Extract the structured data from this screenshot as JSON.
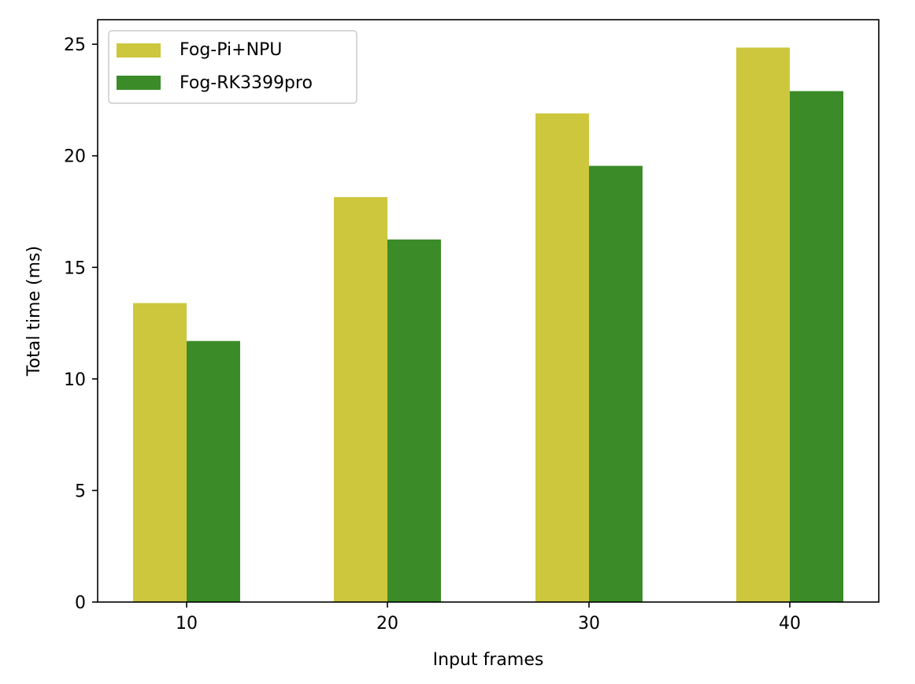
{
  "chart_data": {
    "type": "bar",
    "categories": [
      "10",
      "20",
      "30",
      "40"
    ],
    "series": [
      {
        "name": "Fog-Pi+NPU",
        "color": "#cdc73e",
        "values": [
          13.4,
          18.15,
          21.9,
          24.85
        ]
      },
      {
        "name": "Fog-RK3399pro",
        "color": "#3b8c28",
        "values": [
          11.7,
          16.25,
          19.55,
          22.9
        ]
      }
    ],
    "title": "",
    "xlabel": "Input frames",
    "ylabel": "Total time (ms)",
    "ylim": [
      0,
      26.1
    ],
    "yticks": [
      0,
      5,
      10,
      15,
      20,
      25
    ],
    "grid": false,
    "legend_position": "top-left"
  }
}
